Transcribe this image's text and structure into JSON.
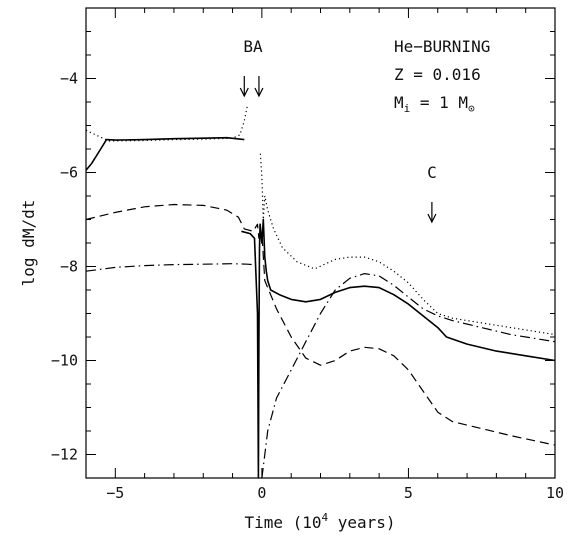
{
  "chart_data": {
    "type": "line",
    "title": "",
    "xlabel": "Time (10",
    "xlabel_exp": "4",
    "xlabel_tail": " years)",
    "ylabel": "log dM/dt",
    "xlim": [
      -6,
      10
    ],
    "ylim": [
      -12.5,
      -2.5
    ],
    "xticks": [
      -5,
      0,
      5,
      10
    ],
    "xtick_labels": [
      "−5",
      "0",
      "5",
      "10"
    ],
    "yticks": [
      -12,
      -10,
      -8,
      -6,
      -4
    ],
    "ytick_labels": [
      "−12",
      "−10",
      "−8",
      "−6",
      "−4"
    ],
    "grid": false,
    "annotations": {
      "ba_label": "BA",
      "ba_arrows_x": [
        -0.6,
        -0.1
      ],
      "c_label": "C",
      "c_arrow_x": 5.8,
      "info_line1": "He−BURNING",
      "info_line2": "Z = 0.016",
      "info_line3_main": "M",
      "info_line3_sub": "i",
      "info_line3_mid": " = 1 M",
      "info_line3_sun": "⊙"
    },
    "series": [
      {
        "style": "solid",
        "segments": [
          [
            [
              -6.0,
              -5.95
            ],
            [
              -5.8,
              -5.8
            ],
            [
              -5.5,
              -5.5
            ],
            [
              -5.3,
              -5.3
            ],
            [
              -5.0,
              -5.31
            ],
            [
              -4.0,
              -5.3
            ],
            [
              -3.0,
              -5.28
            ],
            [
              -2.0,
              -5.27
            ],
            [
              -1.2,
              -5.26
            ],
            [
              -0.6,
              -5.3
            ]
          ],
          [
            [
              -0.7,
              -7.25
            ],
            [
              -0.4,
              -7.3
            ],
            [
              -0.25,
              -7.4
            ],
            [
              -0.15,
              -9.0
            ],
            [
              -0.12,
              -12.5
            ],
            [
              -0.1,
              -9.6
            ],
            [
              -0.08,
              -7.6
            ],
            [
              -0.06,
              -7.1
            ],
            [
              0.0,
              -7.5
            ],
            [
              0.05,
              -7.0
            ],
            [
              0.1,
              -7.8
            ],
            [
              0.15,
              -8.1
            ],
            [
              0.2,
              -8.3
            ],
            [
              0.3,
              -8.5
            ],
            [
              0.6,
              -8.6
            ],
            [
              1.0,
              -8.7
            ],
            [
              1.5,
              -8.75
            ],
            [
              2.0,
              -8.7
            ],
            [
              2.5,
              -8.55
            ],
            [
              3.0,
              -8.45
            ],
            [
              3.5,
              -8.42
            ],
            [
              4.0,
              -8.45
            ],
            [
              4.5,
              -8.6
            ],
            [
              5.0,
              -8.8
            ],
            [
              5.5,
              -9.05
            ],
            [
              6.0,
              -9.3
            ],
            [
              6.3,
              -9.5
            ],
            [
              7.0,
              -9.65
            ],
            [
              8.0,
              -9.8
            ],
            [
              9.0,
              -9.9
            ],
            [
              10.0,
              -10.0
            ]
          ]
        ]
      },
      {
        "style": "dotted",
        "segments": [
          [
            [
              -6.0,
              -5.1
            ],
            [
              -5.5,
              -5.25
            ],
            [
              -5.2,
              -5.33
            ],
            [
              -4.0,
              -5.32
            ],
            [
              -3.0,
              -5.3
            ],
            [
              -2.0,
              -5.29
            ],
            [
              -1.0,
              -5.27
            ],
            [
              -0.75,
              -5.2
            ],
            [
              -0.6,
              -4.9
            ],
            [
              -0.5,
              -4.6
            ]
          ],
          [
            [
              -0.05,
              -5.6
            ],
            [
              0.0,
              -6.1
            ],
            [
              0.05,
              -7.0
            ],
            [
              0.1,
              -6.5
            ],
            [
              0.2,
              -6.8
            ],
            [
              0.4,
              -7.2
            ],
            [
              0.7,
              -7.6
            ],
            [
              1.2,
              -7.9
            ],
            [
              1.8,
              -8.05
            ],
            [
              2.5,
              -7.85
            ],
            [
              3.0,
              -7.8
            ],
            [
              3.5,
              -7.8
            ],
            [
              4.0,
              -7.9
            ],
            [
              4.5,
              -8.1
            ],
            [
              5.0,
              -8.35
            ],
            [
              5.5,
              -8.7
            ],
            [
              6.0,
              -9.0
            ],
            [
              6.5,
              -9.1
            ],
            [
              7.5,
              -9.2
            ],
            [
              8.5,
              -9.3
            ],
            [
              10.0,
              -9.45
            ]
          ]
        ]
      },
      {
        "style": "dashed",
        "segments": [
          [
            [
              -6.0,
              -7.0
            ],
            [
              -5.0,
              -6.85
            ],
            [
              -4.0,
              -6.73
            ],
            [
              -3.0,
              -6.68
            ],
            [
              -2.0,
              -6.7
            ],
            [
              -1.2,
              -6.8
            ],
            [
              -0.8,
              -6.95
            ],
            [
              -0.6,
              -7.2
            ],
            [
              -0.3,
              -7.25
            ],
            [
              -0.15,
              -7.1
            ],
            [
              -0.1,
              -7.4
            ],
            [
              0.0,
              -7.3
            ],
            [
              0.1,
              -8.3
            ],
            [
              0.5,
              -8.9
            ],
            [
              1.0,
              -9.5
            ],
            [
              1.5,
              -9.95
            ],
            [
              2.0,
              -10.1
            ],
            [
              2.5,
              -10.0
            ],
            [
              3.0,
              -9.8
            ],
            [
              3.5,
              -9.72
            ],
            [
              4.0,
              -9.75
            ],
            [
              4.5,
              -9.9
            ],
            [
              5.0,
              -10.2
            ],
            [
              5.5,
              -10.65
            ],
            [
              6.0,
              -11.1
            ],
            [
              6.5,
              -11.3
            ],
            [
              7.5,
              -11.45
            ],
            [
              8.5,
              -11.6
            ],
            [
              10.0,
              -11.8
            ]
          ]
        ]
      },
      {
        "style": "dashdot",
        "segments": [
          [
            [
              -6.0,
              -8.1
            ],
            [
              -5.0,
              -8.02
            ],
            [
              -4.0,
              -7.98
            ],
            [
              -3.0,
              -7.96
            ],
            [
              -2.0,
              -7.95
            ],
            [
              -1.0,
              -7.94
            ],
            [
              -0.5,
              -7.95
            ],
            [
              -0.3,
              -7.96
            ]
          ],
          [
            [
              0.0,
              -12.5
            ],
            [
              0.2,
              -11.5
            ],
            [
              0.5,
              -10.8
            ],
            [
              1.0,
              -10.2
            ],
            [
              1.5,
              -9.6
            ],
            [
              2.0,
              -9.0
            ],
            [
              2.5,
              -8.5
            ],
            [
              3.0,
              -8.25
            ],
            [
              3.5,
              -8.15
            ],
            [
              4.0,
              -8.2
            ],
            [
              4.5,
              -8.4
            ],
            [
              5.0,
              -8.65
            ],
            [
              5.5,
              -8.9
            ],
            [
              6.0,
              -9.05
            ],
            [
              6.5,
              -9.15
            ],
            [
              7.5,
              -9.3
            ],
            [
              8.5,
              -9.45
            ],
            [
              10.0,
              -9.6
            ]
          ]
        ]
      }
    ]
  }
}
